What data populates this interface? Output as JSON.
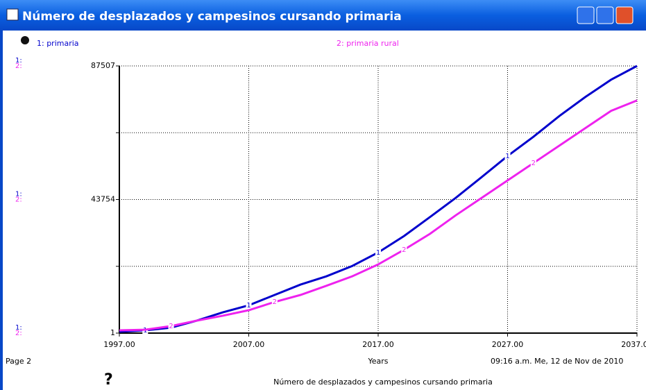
{
  "window": {
    "title": "Número de desplazados y campesinos cursando primaria"
  },
  "chart_data": {
    "type": "line",
    "x": [
      1997,
      1999,
      2001,
      2003,
      2005,
      2007,
      2009,
      2011,
      2013,
      2015,
      2017,
      2019,
      2021,
      2023,
      2025,
      2027,
      2029,
      2031,
      2033,
      2035,
      2037
    ],
    "series": [
      {
        "name": "1: primaria",
        "marker": "1",
        "axis_marker": "1:",
        "color": "#0000cc",
        "values": [
          450,
          900,
          1800,
          4100,
          6800,
          9100,
          12500,
          15900,
          18600,
          22000,
          26400,
          31800,
          38000,
          44300,
          51100,
          58000,
          64300,
          71100,
          77300,
          83000,
          87507
        ]
      },
      {
        "name": "2: primaria rural",
        "marker": "2",
        "axis_marker": "2:",
        "color": "#ee22ee",
        "values": [
          900,
          1100,
          2300,
          4100,
          5700,
          7500,
          10200,
          12500,
          15500,
          18600,
          22500,
          27300,
          32500,
          38600,
          44300,
          50000,
          55700,
          61400,
          67100,
          72800,
          76200
        ]
      }
    ],
    "xlim": [
      1997,
      2037
    ],
    "xticks": [
      {
        "value": 1997,
        "label": "1997.00"
      },
      {
        "value": 2007,
        "label": "2007.00"
      },
      {
        "value": 2017,
        "label": "2017.00"
      },
      {
        "value": 2027,
        "label": "2027.00"
      },
      {
        "value": 2037,
        "label": "2037.00"
      }
    ],
    "ylim": [
      1,
      87507
    ],
    "yticks": [
      1,
      43754,
      87507
    ],
    "xlabel": "Years",
    "grid": true
  },
  "footer": {
    "page": "Page 2",
    "timestamp": "09:16 a.m.   Me, 12 de Nov de 2010",
    "caption": "Número de desplazados y campesinos cursando primaria",
    "help": "?"
  }
}
